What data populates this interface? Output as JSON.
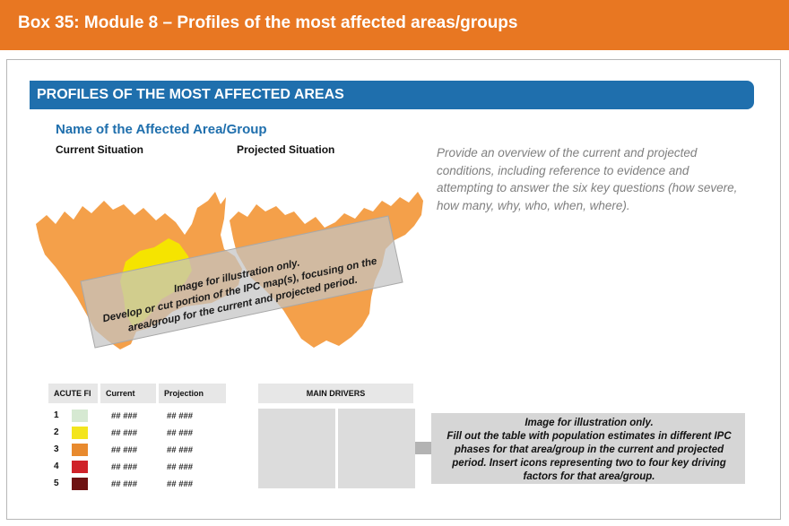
{
  "box_header": {
    "title": "Box 35: Module 8 – Profiles of the most affected areas/groups"
  },
  "section": {
    "title": "PROFILES OF THE MOST AFFECTED AREAS"
  },
  "profile": {
    "area_name": "Name of the Affected Area/Group",
    "current_label": "Current Situation",
    "projected_label": "Projected Situation",
    "description": "Provide an overview of the current and projected conditions, including reference to evidence and attempting to answer the six key questions (how severe, how many, why, who, when, where)."
  },
  "map_overlay": {
    "lines": [
      "Image for illustration only.",
      "Develop or cut portion of the IPC map(s), focusing on the",
      "area/group for the current and projected period."
    ]
  },
  "table": {
    "headers": [
      "ACUTE FI",
      "Current",
      "Projection"
    ],
    "rows": [
      {
        "phase": "1",
        "color": "#d6e9d2",
        "current": "## ###",
        "projection": "## ###"
      },
      {
        "phase": "2",
        "color": "#f3e51d",
        "current": "## ###",
        "projection": "## ###"
      },
      {
        "phase": "3",
        "color": "#e88a2e",
        "current": "## ###",
        "projection": "## ###"
      },
      {
        "phase": "4",
        "color": "#cf2229",
        "current": "## ###",
        "projection": "## ###"
      },
      {
        "phase": "5",
        "color": "#6e1212",
        "current": "## ###",
        "projection": "## ###"
      }
    ]
  },
  "drivers": {
    "title": "MAIN DRIVERS"
  },
  "callout": {
    "lines": [
      "Image for illustration only.",
      "Fill out the table with population estimates in different IPC",
      "phases for that area/group in the current and projected",
      "period. Insert icons representing two to four key driving",
      "factors for that area/group."
    ]
  },
  "colors": {
    "header": "#e87722",
    "band": "#1f6fad",
    "map_fill": "#f4a04a"
  }
}
